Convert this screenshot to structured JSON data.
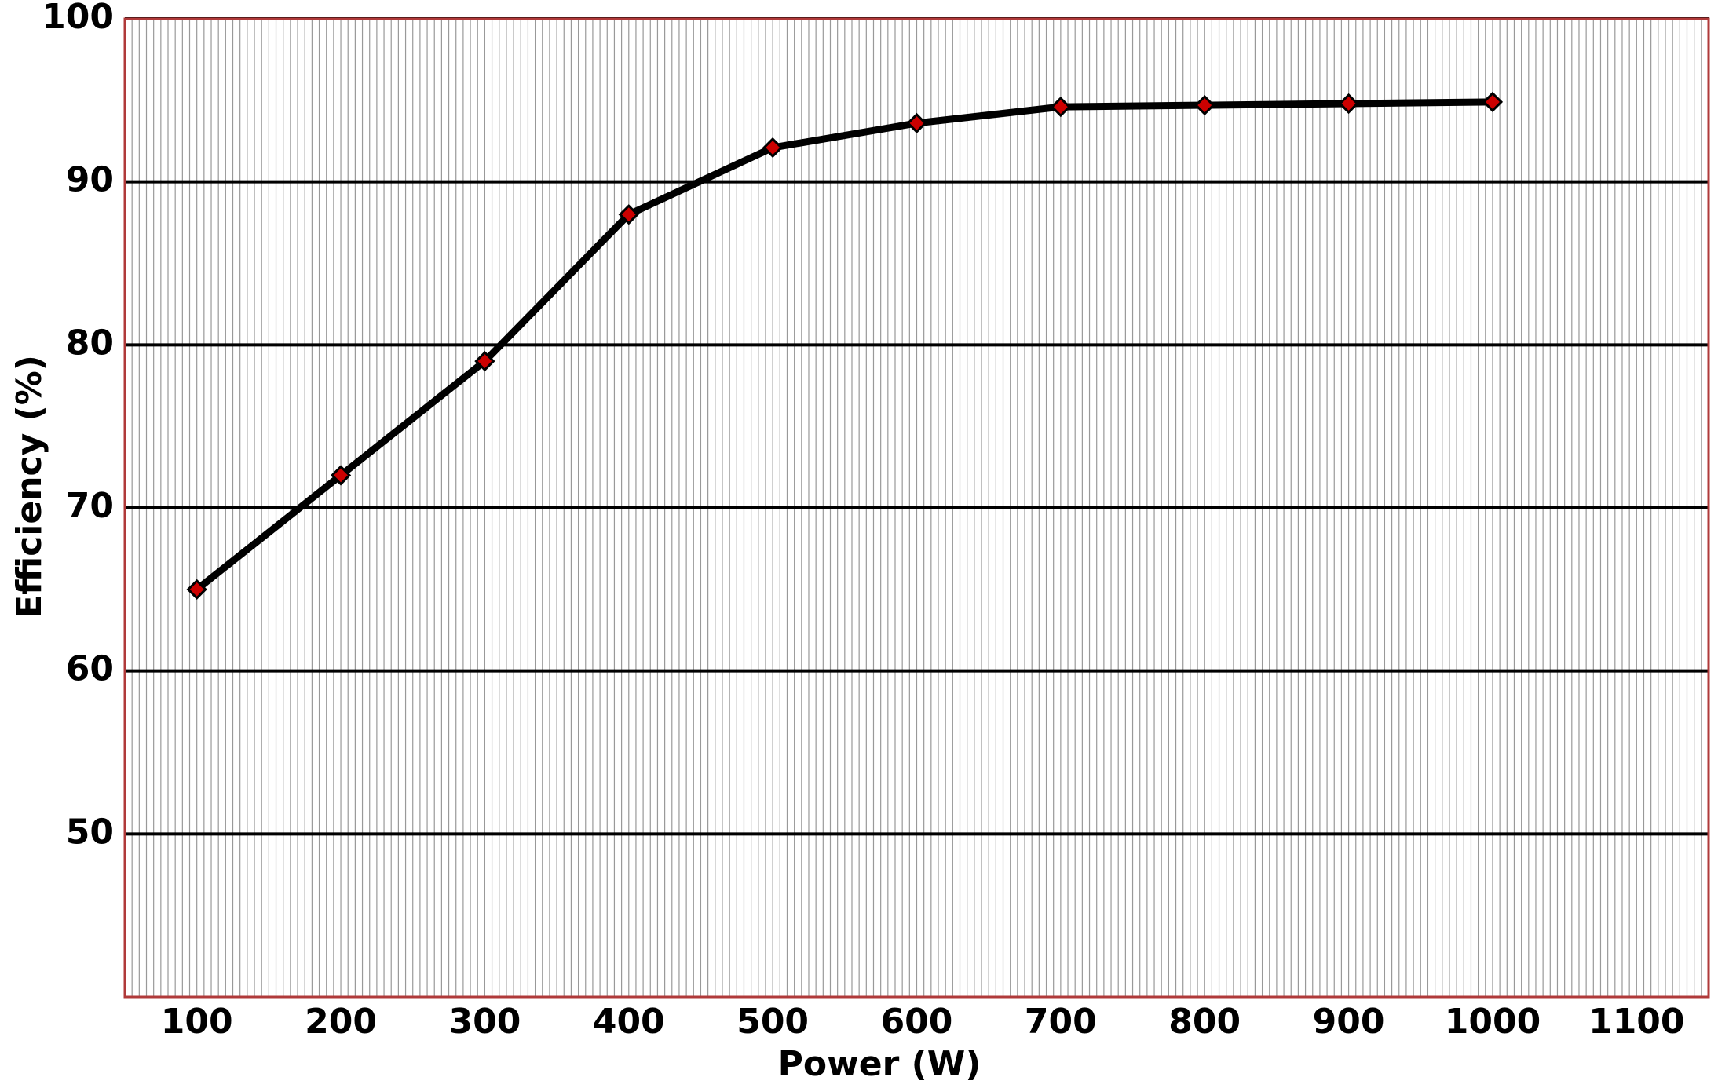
{
  "chart_data": {
    "type": "line",
    "x_label": "Power (W)",
    "y_label": "Efficiency (%)",
    "x": [
      100,
      200,
      300,
      400,
      500,
      600,
      700,
      800,
      900,
      1000
    ],
    "series": [
      {
        "color": "#000000",
        "marker_color": "#cc0000",
        "values": [
          65,
          72,
          79,
          88,
          92.1,
          93.6,
          94.6,
          94.7,
          94.8,
          94.9
        ]
      }
    ],
    "xlim": [
      50,
      1150
    ],
    "xticks": [
      100,
      200,
      300,
      400,
      500,
      600,
      700,
      800,
      900,
      1000,
      1100
    ],
    "ylim": [
      40,
      100
    ],
    "yticks": [
      50,
      60,
      70,
      80,
      90,
      100
    ],
    "grid": true,
    "x_minor_grid_step": 5
  }
}
